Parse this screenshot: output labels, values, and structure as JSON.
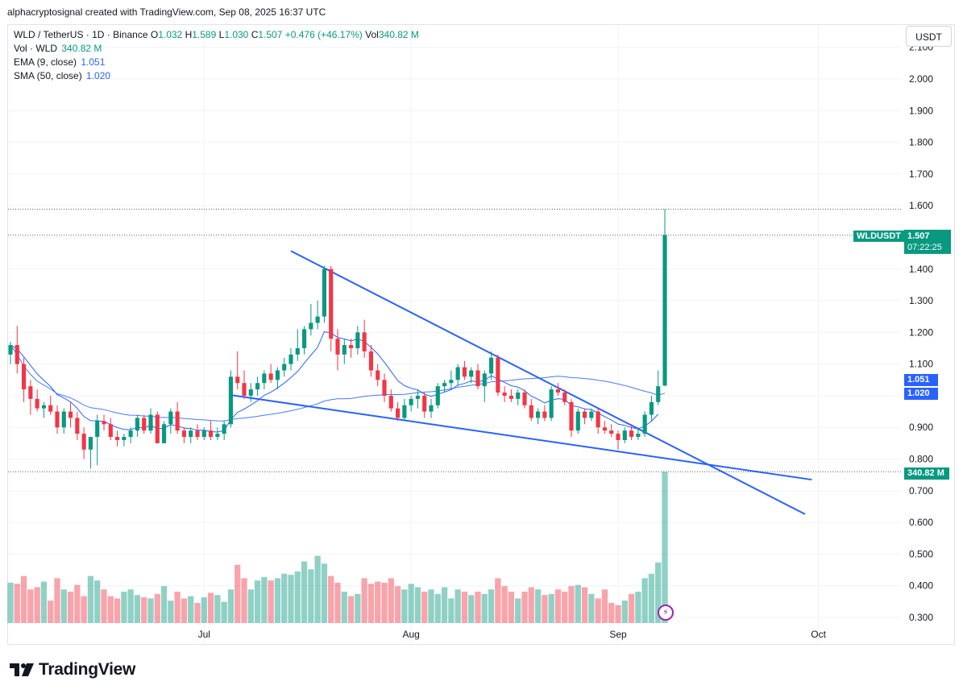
{
  "caption": "alphacryptosignal created with TradingView.com, Sep 08, 2025 16:37 UTC",
  "legend": {
    "symbol": "WLD / TetherUS · 1D · Binance",
    "o_label": "O",
    "o": "1.032",
    "h_label": "H",
    "h": "1.589",
    "l_label": "L",
    "l": "1.030",
    "c_label": "C",
    "c": "1.507",
    "change": "+0.476 (+46.17%)",
    "vol_label": "Vol",
    "vol": "340.82 M",
    "vol_row_label": "Vol · WLD",
    "vol_row_value": "340.82 M",
    "ema_label": "EMA (9, close)",
    "ema_value": "1.051",
    "sma_label": "SMA (50, close)",
    "sma_value": "1.020"
  },
  "currency": "USDT",
  "tags": {
    "symbol": "WLDUSDT",
    "price": "1.507",
    "countdown": "07:22:25",
    "ema": "1.051",
    "sma": "1.020",
    "volume": "340.82 M"
  },
  "brand": "TradingView",
  "colors": {
    "up": "#089981",
    "down": "#f23645",
    "trendline": "#2962ff",
    "ma": "#2962ff"
  },
  "chart_data": {
    "type": "candlestick",
    "symbol": "WLD / TetherUS",
    "interval": "1D",
    "exchange": "Binance",
    "y_ticks": [
      "0.300",
      "0.400",
      "0.500",
      "0.600",
      "0.700",
      "0.800",
      "0.900",
      "1.000",
      "1.100",
      "1.200",
      "1.300",
      "1.400",
      "1.500",
      "1.600",
      "1.700",
      "1.800",
      "1.900",
      "2.000",
      "2.100"
    ],
    "ylim": [
      0.27,
      2.12
    ],
    "x_ticks": [
      {
        "label": "Jul",
        "date": "2025-07-01"
      },
      {
        "label": "Aug",
        "date": "2025-08-01"
      },
      {
        "label": "Sep",
        "date": "2025-09-01"
      },
      {
        "label": "Oct",
        "date": "2025-10-01"
      }
    ],
    "xlim": [
      "2025-06-02",
      "2025-10-13"
    ],
    "candles": [
      {
        "date": "2025-06-02",
        "o": 1.13,
        "h": 1.17,
        "l": 1.1,
        "c": 1.16
      },
      {
        "date": "2025-06-03",
        "o": 1.16,
        "h": 1.22,
        "l": 1.07,
        "c": 1.1
      },
      {
        "date": "2025-06-04",
        "o": 1.1,
        "h": 1.12,
        "l": 0.98,
        "c": 1.02
      },
      {
        "date": "2025-06-05",
        "o": 1.03,
        "h": 1.05,
        "l": 0.94,
        "c": 0.99
      },
      {
        "date": "2025-06-06",
        "o": 0.99,
        "h": 1.02,
        "l": 0.95,
        "c": 0.96
      },
      {
        "date": "2025-06-07",
        "o": 0.96,
        "h": 0.98,
        "l": 0.93,
        "c": 0.97
      },
      {
        "date": "2025-06-08",
        "o": 0.97,
        "h": 1.0,
        "l": 0.94,
        "c": 0.95
      },
      {
        "date": "2025-06-09",
        "o": 0.95,
        "h": 0.97,
        "l": 0.88,
        "c": 0.9
      },
      {
        "date": "2025-06-10",
        "o": 0.9,
        "h": 0.96,
        "l": 0.88,
        "c": 0.95
      },
      {
        "date": "2025-06-11",
        "o": 0.95,
        "h": 0.98,
        "l": 0.9,
        "c": 0.93
      },
      {
        "date": "2025-06-12",
        "o": 0.93,
        "h": 0.95,
        "l": 0.86,
        "c": 0.88
      },
      {
        "date": "2025-06-13",
        "o": 0.88,
        "h": 0.9,
        "l": 0.8,
        "c": 0.83
      },
      {
        "date": "2025-06-14",
        "o": 0.83,
        "h": 0.86,
        "l": 0.77,
        "c": 0.87
      },
      {
        "date": "2025-06-15",
        "o": 0.87,
        "h": 0.94,
        "l": 0.78,
        "c": 0.92
      },
      {
        "date": "2025-06-16",
        "o": 0.92,
        "h": 0.94,
        "l": 0.89,
        "c": 0.91
      },
      {
        "date": "2025-06-17",
        "o": 0.91,
        "h": 0.93,
        "l": 0.86,
        "c": 0.87
      },
      {
        "date": "2025-06-18",
        "o": 0.87,
        "h": 0.89,
        "l": 0.84,
        "c": 0.86
      },
      {
        "date": "2025-06-19",
        "o": 0.86,
        "h": 0.88,
        "l": 0.84,
        "c": 0.87
      },
      {
        "date": "2025-06-20",
        "o": 0.87,
        "h": 0.9,
        "l": 0.85,
        "c": 0.89
      },
      {
        "date": "2025-06-21",
        "o": 0.89,
        "h": 0.94,
        "l": 0.87,
        "c": 0.93
      },
      {
        "date": "2025-06-22",
        "o": 0.93,
        "h": 0.94,
        "l": 0.88,
        "c": 0.89
      },
      {
        "date": "2025-06-23",
        "o": 0.89,
        "h": 0.96,
        "l": 0.88,
        "c": 0.94
      },
      {
        "date": "2025-06-24",
        "o": 0.94,
        "h": 0.95,
        "l": 0.85,
        "c": 0.85
      },
      {
        "date": "2025-06-25",
        "o": 0.85,
        "h": 0.92,
        "l": 0.85,
        "c": 0.91
      },
      {
        "date": "2025-06-26",
        "o": 0.91,
        "h": 0.96,
        "l": 0.88,
        "c": 0.95
      },
      {
        "date": "2025-06-27",
        "o": 0.95,
        "h": 0.98,
        "l": 0.88,
        "c": 0.89
      },
      {
        "date": "2025-06-28",
        "o": 0.89,
        "h": 0.9,
        "l": 0.85,
        "c": 0.87
      },
      {
        "date": "2025-06-29",
        "o": 0.87,
        "h": 0.9,
        "l": 0.85,
        "c": 0.89
      },
      {
        "date": "2025-06-30",
        "o": 0.89,
        "h": 0.91,
        "l": 0.86,
        "c": 0.87
      },
      {
        "date": "2025-07-01",
        "o": 0.87,
        "h": 0.9,
        "l": 0.86,
        "c": 0.89
      },
      {
        "date": "2025-07-02",
        "o": 0.89,
        "h": 0.92,
        "l": 0.86,
        "c": 0.87
      },
      {
        "date": "2025-07-03",
        "o": 0.87,
        "h": 0.9,
        "l": 0.86,
        "c": 0.88
      },
      {
        "date": "2025-07-04",
        "o": 0.88,
        "h": 0.92,
        "l": 0.86,
        "c": 0.91
      },
      {
        "date": "2025-07-05",
        "o": 0.91,
        "h": 1.08,
        "l": 0.9,
        "c": 1.06
      },
      {
        "date": "2025-07-06",
        "o": 1.06,
        "h": 1.14,
        "l": 1.02,
        "c": 1.04
      },
      {
        "date": "2025-07-07",
        "o": 1.04,
        "h": 1.08,
        "l": 0.99,
        "c": 1.0
      },
      {
        "date": "2025-07-08",
        "o": 1.0,
        "h": 1.04,
        "l": 0.98,
        "c": 1.02
      },
      {
        "date": "2025-07-09",
        "o": 1.02,
        "h": 1.06,
        "l": 1.0,
        "c": 1.04
      },
      {
        "date": "2025-07-10",
        "o": 1.04,
        "h": 1.08,
        "l": 1.02,
        "c": 1.07
      },
      {
        "date": "2025-07-11",
        "o": 1.07,
        "h": 1.1,
        "l": 1.04,
        "c": 1.05
      },
      {
        "date": "2025-07-12",
        "o": 1.05,
        "h": 1.09,
        "l": 1.02,
        "c": 1.08
      },
      {
        "date": "2025-07-13",
        "o": 1.08,
        "h": 1.12,
        "l": 1.06,
        "c": 1.1
      },
      {
        "date": "2025-07-14",
        "o": 1.1,
        "h": 1.15,
        "l": 1.08,
        "c": 1.13
      },
      {
        "date": "2025-07-15",
        "o": 1.13,
        "h": 1.21,
        "l": 1.11,
        "c": 1.15
      },
      {
        "date": "2025-07-16",
        "o": 1.15,
        "h": 1.22,
        "l": 1.13,
        "c": 1.21
      },
      {
        "date": "2025-07-17",
        "o": 1.21,
        "h": 1.29,
        "l": 1.19,
        "c": 1.23
      },
      {
        "date": "2025-07-18",
        "o": 1.23,
        "h": 1.3,
        "l": 1.21,
        "c": 1.25
      },
      {
        "date": "2025-07-19",
        "o": 1.25,
        "h": 1.41,
        "l": 1.23,
        "c": 1.4
      },
      {
        "date": "2025-07-20",
        "o": 1.4,
        "h": 1.41,
        "l": 1.14,
        "c": 1.18
      },
      {
        "date": "2025-07-21",
        "o": 1.18,
        "h": 1.21,
        "l": 1.08,
        "c": 1.13
      },
      {
        "date": "2025-07-22",
        "o": 1.13,
        "h": 1.18,
        "l": 1.1,
        "c": 1.16
      },
      {
        "date": "2025-07-23",
        "o": 1.16,
        "h": 1.18,
        "l": 1.12,
        "c": 1.15
      },
      {
        "date": "2025-07-24",
        "o": 1.15,
        "h": 1.22,
        "l": 1.13,
        "c": 1.2
      },
      {
        "date": "2025-07-25",
        "o": 1.2,
        "h": 1.24,
        "l": 1.12,
        "c": 1.14
      },
      {
        "date": "2025-07-26",
        "o": 1.14,
        "h": 1.16,
        "l": 1.06,
        "c": 1.08
      },
      {
        "date": "2025-07-27",
        "o": 1.08,
        "h": 1.1,
        "l": 1.03,
        "c": 1.05
      },
      {
        "date": "2025-07-28",
        "o": 1.05,
        "h": 1.07,
        "l": 0.98,
        "c": 1.0
      },
      {
        "date": "2025-07-29",
        "o": 1.0,
        "h": 1.02,
        "l": 0.95,
        "c": 0.96
      },
      {
        "date": "2025-07-30",
        "o": 0.96,
        "h": 0.98,
        "l": 0.92,
        "c": 0.93
      },
      {
        "date": "2025-07-31",
        "o": 0.93,
        "h": 0.99,
        "l": 0.92,
        "c": 0.97
      },
      {
        "date": "2025-08-01",
        "o": 0.97,
        "h": 1.0,
        "l": 0.95,
        "c": 0.99
      },
      {
        "date": "2025-08-02",
        "o": 0.99,
        "h": 1.02,
        "l": 0.96,
        "c": 1.0
      },
      {
        "date": "2025-08-03",
        "o": 1.0,
        "h": 1.01,
        "l": 0.93,
        "c": 0.95
      },
      {
        "date": "2025-08-04",
        "o": 0.95,
        "h": 0.99,
        "l": 0.93,
        "c": 0.97
      },
      {
        "date": "2025-08-05",
        "o": 0.97,
        "h": 1.04,
        "l": 0.96,
        "c": 1.03
      },
      {
        "date": "2025-08-06",
        "o": 1.03,
        "h": 1.05,
        "l": 1.01,
        "c": 1.04
      },
      {
        "date": "2025-08-07",
        "o": 1.04,
        "h": 1.08,
        "l": 1.02,
        "c": 1.05
      },
      {
        "date": "2025-08-08",
        "o": 1.05,
        "h": 1.1,
        "l": 1.03,
        "c": 1.09
      },
      {
        "date": "2025-08-09",
        "o": 1.09,
        "h": 1.11,
        "l": 1.05,
        "c": 1.06
      },
      {
        "date": "2025-08-10",
        "o": 1.06,
        "h": 1.09,
        "l": 1.04,
        "c": 1.08
      },
      {
        "date": "2025-08-11",
        "o": 1.08,
        "h": 1.1,
        "l": 1.02,
        "c": 1.03
      },
      {
        "date": "2025-08-12",
        "o": 1.03,
        "h": 1.08,
        "l": 0.98,
        "c": 1.07
      },
      {
        "date": "2025-08-13",
        "o": 1.07,
        "h": 1.14,
        "l": 1.05,
        "c": 1.12
      },
      {
        "date": "2025-08-14",
        "o": 1.12,
        "h": 1.13,
        "l": 1.0,
        "c": 1.01
      },
      {
        "date": "2025-08-15",
        "o": 1.01,
        "h": 1.03,
        "l": 0.98,
        "c": 1.0
      },
      {
        "date": "2025-08-16",
        "o": 1.0,
        "h": 1.02,
        "l": 0.98,
        "c": 0.99
      },
      {
        "date": "2025-08-17",
        "o": 0.99,
        "h": 1.02,
        "l": 0.97,
        "c": 1.01
      },
      {
        "date": "2025-08-18",
        "o": 1.01,
        "h": 1.02,
        "l": 0.96,
        "c": 0.97
      },
      {
        "date": "2025-08-19",
        "o": 0.97,
        "h": 0.99,
        "l": 0.92,
        "c": 0.93
      },
      {
        "date": "2025-08-20",
        "o": 0.93,
        "h": 0.96,
        "l": 0.91,
        "c": 0.95
      },
      {
        "date": "2025-08-21",
        "o": 0.95,
        "h": 0.97,
        "l": 0.92,
        "c": 0.93
      },
      {
        "date": "2025-08-22",
        "o": 0.93,
        "h": 1.03,
        "l": 0.92,
        "c": 1.02
      },
      {
        "date": "2025-08-23",
        "o": 1.02,
        "h": 1.04,
        "l": 1.0,
        "c": 1.01
      },
      {
        "date": "2025-08-24",
        "o": 1.01,
        "h": 1.02,
        "l": 0.97,
        "c": 0.98
      },
      {
        "date": "2025-08-25",
        "o": 0.98,
        "h": 0.99,
        "l": 0.87,
        "c": 0.89
      },
      {
        "date": "2025-08-26",
        "o": 0.89,
        "h": 0.96,
        "l": 0.88,
        "c": 0.95
      },
      {
        "date": "2025-08-27",
        "o": 0.95,
        "h": 0.96,
        "l": 0.91,
        "c": 0.93
      },
      {
        "date": "2025-08-28",
        "o": 0.93,
        "h": 0.96,
        "l": 0.92,
        "c": 0.95
      },
      {
        "date": "2025-08-29",
        "o": 0.95,
        "h": 0.96,
        "l": 0.88,
        "c": 0.9
      },
      {
        "date": "2025-08-30",
        "o": 0.9,
        "h": 0.92,
        "l": 0.88,
        "c": 0.89
      },
      {
        "date": "2025-08-31",
        "o": 0.89,
        "h": 0.91,
        "l": 0.87,
        "c": 0.88
      },
      {
        "date": "2025-09-01",
        "o": 0.88,
        "h": 0.89,
        "l": 0.83,
        "c": 0.86
      },
      {
        "date": "2025-09-02",
        "o": 0.86,
        "h": 0.9,
        "l": 0.85,
        "c": 0.89
      },
      {
        "date": "2025-09-03",
        "o": 0.89,
        "h": 0.91,
        "l": 0.86,
        "c": 0.87
      },
      {
        "date": "2025-09-04",
        "o": 0.87,
        "h": 0.9,
        "l": 0.86,
        "c": 0.88
      },
      {
        "date": "2025-09-05",
        "o": 0.88,
        "h": 0.95,
        "l": 0.87,
        "c": 0.94
      },
      {
        "date": "2025-09-06",
        "o": 0.94,
        "h": 1.0,
        "l": 0.92,
        "c": 0.98
      },
      {
        "date": "2025-09-07",
        "o": 0.98,
        "h": 1.08,
        "l": 0.97,
        "c": 1.03
      },
      {
        "date": "2025-09-08",
        "o": 1.032,
        "h": 1.589,
        "l": 1.03,
        "c": 1.507
      }
    ],
    "volume": [
      36,
      35,
      42,
      30,
      32,
      37,
      20,
      40,
      30,
      28,
      34,
      24,
      42,
      38,
      30,
      24,
      22,
      28,
      30,
      25,
      23,
      22,
      26,
      33,
      20,
      28,
      22,
      24,
      18,
      23,
      27,
      25,
      19,
      30,
      52,
      40,
      30,
      38,
      41,
      38,
      40,
      44,
      43,
      46,
      55,
      48,
      60,
      53,
      42,
      36,
      28,
      24,
      26,
      40,
      35,
      37,
      36,
      40,
      33,
      30,
      35,
      32,
      28,
      30,
      26,
      32,
      22,
      30,
      28,
      25,
      28,
      26,
      30,
      40,
      33,
      28,
      22,
      28,
      32,
      30,
      25,
      26,
      30,
      28,
      33,
      34,
      32,
      26,
      22,
      30,
      18,
      16,
      20,
      26,
      28,
      40,
      44,
      54,
      135
    ]
  }
}
